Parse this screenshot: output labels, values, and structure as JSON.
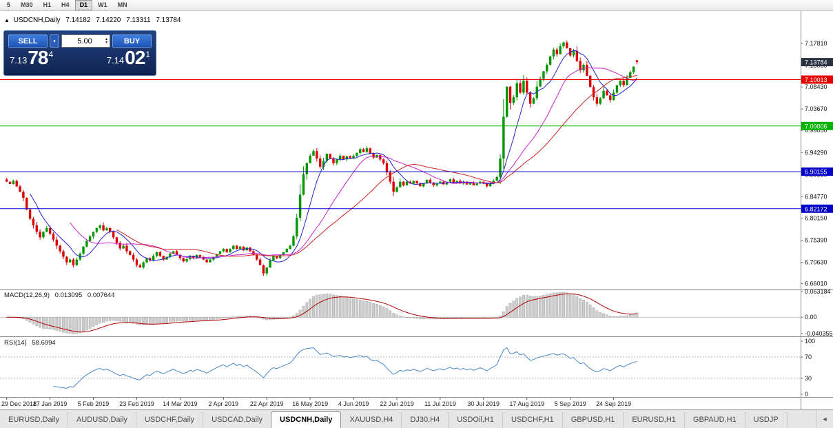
{
  "icons": {
    "chart_marker": "▲",
    "dropdown": "▾",
    "spinner_up": "▴",
    "spinner_down": "▾",
    "tab_scroll_left": "◄"
  },
  "toolbar": {
    "timeframes": [
      {
        "label": "5",
        "active": false
      },
      {
        "label": "M30",
        "active": false
      },
      {
        "label": "H1",
        "active": false
      },
      {
        "label": "H4",
        "active": false
      },
      {
        "label": "D1",
        "active": true
      },
      {
        "label": "W1",
        "active": false
      },
      {
        "label": "MN",
        "active": false
      }
    ]
  },
  "chart_header": {
    "symbol": "USDCNH,Daily",
    "open": "7.14182",
    "high": "7.14220",
    "low": "7.13311",
    "close": "7.13784"
  },
  "trade_panel": {
    "sell_label": "SELL",
    "buy_label": "BUY",
    "lot_size": "5.00",
    "bid_prefix": "7.13",
    "bid_main": "78",
    "bid_sup": "4",
    "ask_prefix": "7.14",
    "ask_main": "02",
    "ask_sup": "1"
  },
  "price_axis": {
    "labels": [
      "7.17810",
      "7.13050",
      "7.08430",
      "7.03670",
      "6.99050",
      "6.94290",
      "6.89530",
      "6.84770",
      "6.80150",
      "6.75390",
      "6.70630",
      "6.66010"
    ],
    "current": {
      "label": "7.13784",
      "color": "#2a3140"
    }
  },
  "macd": {
    "name": "MACD(12,26,9)",
    "main_value": "0.013095",
    "signal_value": "0.007644",
    "axis": [
      "0.063184",
      "0.00",
      "-0.040355"
    ]
  },
  "rsi": {
    "name": "RSI(14)",
    "value": "58.6994",
    "axis": [
      "100",
      "70",
      "30",
      "0"
    ]
  },
  "tabs": {
    "items": [
      {
        "label": "EURUSD,Daily",
        "active": false
      },
      {
        "label": "AUDUSD,Daily",
        "active": false
      },
      {
        "label": "USDCHF,Daily",
        "active": false
      },
      {
        "label": "USDCAD,Daily",
        "active": false
      },
      {
        "label": "USDCNH,Daily",
        "active": true
      },
      {
        "label": "XAUUSD,H4",
        "active": false
      },
      {
        "label": "DJ30,H4",
        "active": false
      },
      {
        "label": "USDOil,H1",
        "active": false
      },
      {
        "label": "USDCHF,H1",
        "active": false
      },
      {
        "label": "GBPUSD,H1",
        "active": false
      },
      {
        "label": "EURUSD,H1",
        "active": false
      },
      {
        "label": "GBPAUD,H1",
        "active": false
      },
      {
        "label": "USDJP",
        "active": false
      }
    ],
    "scroll_left": "◄"
  },
  "chart_data": {
    "type": "candlestick",
    "symbol": "USDCNH",
    "timeframe": "Daily",
    "ohlc_last": {
      "open": 7.14182,
      "high": 7.1422,
      "low": 7.13311,
      "close": 7.13784
    },
    "first_open": 6.885,
    "price_range": [
      6.646,
      7.2
    ],
    "colors": {
      "up": "#009600",
      "down": "#dd0000"
    },
    "closes": [
      6.88,
      6.875,
      6.882,
      6.87,
      6.858,
      6.845,
      6.82,
      6.8,
      6.786,
      6.772,
      6.76,
      6.772,
      6.78,
      6.768,
      6.755,
      6.742,
      6.73,
      6.718,
      6.706,
      6.712,
      6.7,
      6.712,
      6.725,
      6.74,
      6.752,
      6.762,
      6.772,
      6.78,
      6.786,
      6.775,
      6.78,
      6.772,
      6.76,
      6.748,
      6.736,
      6.742,
      6.73,
      6.722,
      6.712,
      6.7,
      6.695,
      6.706,
      6.715,
      6.71,
      6.72,
      6.728,
      6.72,
      6.712,
      6.718,
      6.725,
      6.73,
      6.722,
      6.715,
      6.708,
      6.713,
      6.72,
      6.715,
      6.722,
      6.718,
      6.712,
      6.706,
      6.712,
      6.718,
      6.724,
      6.73,
      6.735,
      6.728,
      6.735,
      6.742,
      6.735,
      6.74,
      6.732,
      6.738,
      6.73,
      6.722,
      6.712,
      6.7,
      6.682,
      6.695,
      6.71,
      6.72,
      6.715,
      6.722,
      6.728,
      6.735,
      6.742,
      6.762,
      6.802,
      6.852,
      6.896,
      6.92,
      6.936,
      6.946,
      6.93,
      6.912,
      6.925,
      6.94,
      6.93,
      6.92,
      6.928,
      6.936,
      6.928,
      6.935,
      6.93,
      6.936,
      6.942,
      6.95,
      6.944,
      6.952,
      6.94,
      6.932,
      6.938,
      6.928,
      6.92,
      6.9,
      6.88,
      6.858,
      6.868,
      6.88,
      6.872,
      6.88,
      6.876,
      6.882,
      6.876,
      6.87,
      6.876,
      6.884,
      6.878,
      6.872,
      6.876,
      6.88,
      6.874,
      6.88,
      6.885,
      6.878,
      6.882,
      6.876,
      6.88,
      6.874,
      6.878,
      6.872,
      6.876,
      6.88,
      6.876,
      6.87,
      6.876,
      6.882,
      6.89,
      6.93,
      7.02,
      7.085,
      7.05,
      7.062,
      7.092,
      7.072,
      7.098,
      7.072,
      7.048,
      7.06,
      7.085,
      7.102,
      7.118,
      7.132,
      7.15,
      7.165,
      7.155,
      7.172,
      7.18,
      7.168,
      7.152,
      7.162,
      7.14,
      7.12,
      7.132,
      7.108,
      7.084,
      7.062,
      7.048,
      7.06,
      7.076,
      7.066,
      7.056,
      7.072,
      7.088,
      7.098,
      7.088,
      7.104,
      7.116,
      7.128,
      7.13784
    ],
    "date_ticks": [
      {
        "label": "29 Dec 2018",
        "bar": 0
      },
      {
        "label": "17 Jan 2019",
        "bar": 13
      },
      {
        "label": "5 Feb 2019",
        "bar": 26
      },
      {
        "label": "23 Feb 2019",
        "bar": 39
      },
      {
        "label": "14 Mar 2019",
        "bar": 52
      },
      {
        "label": "2 Apr 2019",
        "bar": 65
      },
      {
        "label": "22 Apr 2019",
        "bar": 78
      },
      {
        "label": "16 May 2019",
        "bar": 91
      },
      {
        "label": "4 Jun 2019",
        "bar": 104
      },
      {
        "label": "22 Jun 2019",
        "bar": 117
      },
      {
        "label": "11 Jul 2019",
        "bar": 130
      },
      {
        "label": "30 Jul 2019",
        "bar": 143
      },
      {
        "label": "17 Aug 2019",
        "bar": 156
      },
      {
        "label": "5 Sep 2019",
        "bar": 169
      },
      {
        "label": "24 Sep 2019",
        "bar": 182
      }
    ],
    "moving_averages": [
      {
        "period": 8,
        "color": "#2222cc"
      },
      {
        "period": 20,
        "color": "#cc22cc"
      },
      {
        "period": 34,
        "color": "#cc2222"
      }
    ],
    "hlines": [
      {
        "price": 7.10013,
        "label": "7.10013",
        "color": "#e60000"
      },
      {
        "price": 7.00006,
        "label": "7.00006",
        "color": "#00b400"
      },
      {
        "price": 6.90155,
        "label": "6.90155",
        "color": "#0000c8"
      },
      {
        "price": 6.82172,
        "label": "6.82172",
        "color": "#0000c8"
      }
    ],
    "macd": {
      "fast": 12,
      "slow": 26,
      "signal": 9,
      "axis_range": [
        -0.040355,
        0.063184
      ]
    },
    "rsi": {
      "period": 14,
      "levels": [
        70,
        30
      ],
      "last": 58.6994
    }
  }
}
